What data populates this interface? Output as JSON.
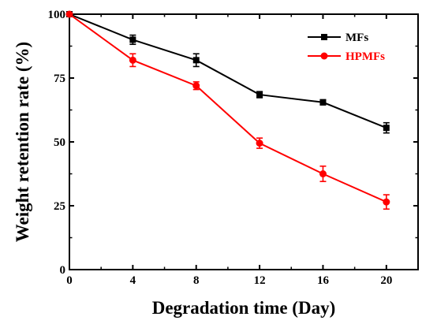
{
  "chart_data": {
    "type": "line",
    "xlabel": "Degradation time (Day)",
    "ylabel": "Weight retention rate (%)",
    "x": [
      0,
      4,
      8,
      12,
      16,
      20
    ],
    "xlim": [
      0,
      22
    ],
    "ylim": [
      0,
      100
    ],
    "x_ticks": [
      "0",
      "4",
      "8",
      "12",
      "16",
      "20"
    ],
    "y_ticks": [
      "0",
      "25",
      "50",
      "75",
      "100"
    ],
    "grid": false,
    "legend_position": "top-right",
    "series": [
      {
        "name": "MFs",
        "color": "#000000",
        "marker": "square",
        "values": [
          100,
          90,
          82,
          68.5,
          65.5,
          55.5
        ],
        "errors": [
          0,
          1.8,
          2.5,
          1.2,
          1.0,
          2.0
        ]
      },
      {
        "name": "HPMFs",
        "color": "#ff0000",
        "marker": "circle",
        "values": [
          100,
          82,
          72,
          49.5,
          37.5,
          26.5
        ],
        "errors": [
          0,
          2.5,
          1.5,
          2.0,
          3.0,
          2.8
        ]
      }
    ]
  }
}
